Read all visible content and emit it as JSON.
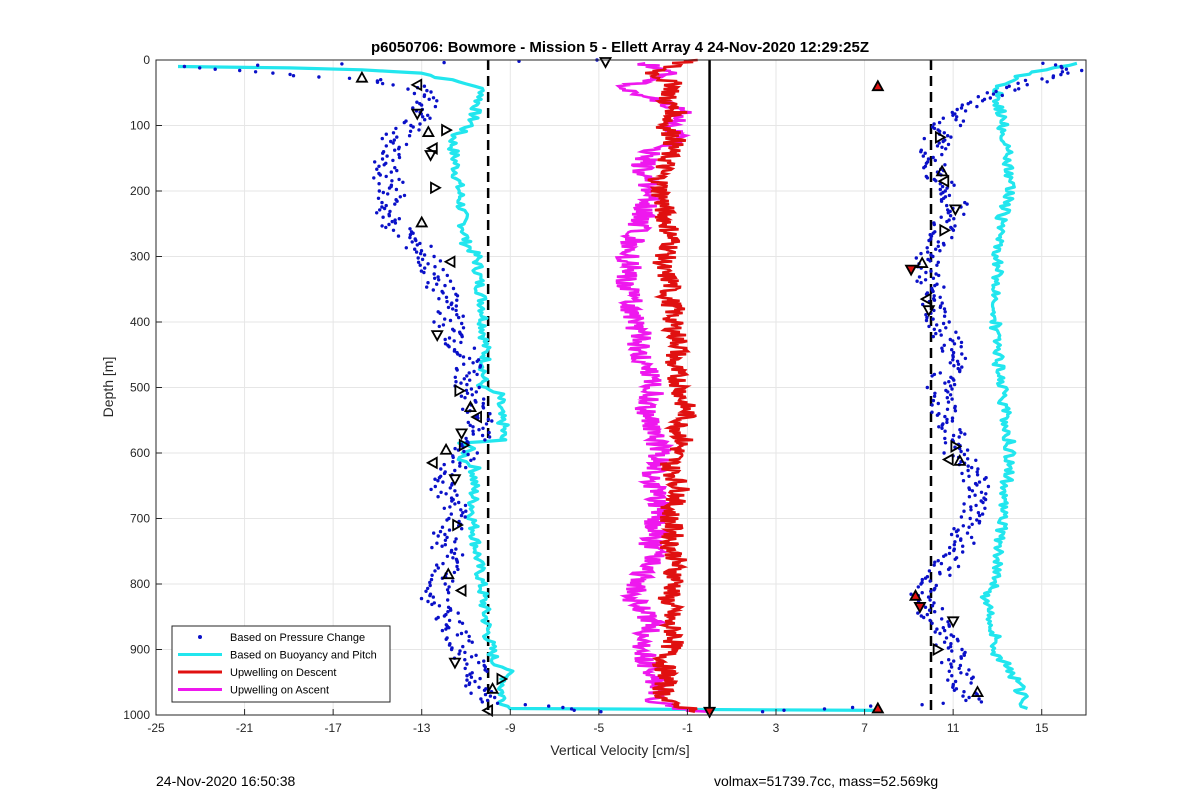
{
  "chart_data": {
    "type": "scatter",
    "title": "p6050706: Bowmore - Mission 5 - Ellett Array 4 24-Nov-2020 12:29:25Z",
    "xlabel": "Vertical Velocity [cm/s]",
    "ylabel": "Depth [m]",
    "xlim": [
      -25,
      17
    ],
    "ylim": [
      0,
      1000
    ],
    "y_reversed": true,
    "xticks": [
      -25,
      -21,
      -17,
      -13,
      -9,
      -5,
      -1,
      3,
      7,
      11,
      15
    ],
    "yticks": [
      0,
      100,
      200,
      300,
      400,
      500,
      600,
      700,
      800,
      900,
      1000
    ],
    "grid": true,
    "legend_position": "bottom-left",
    "reference_lines": [
      {
        "x": -10,
        "style": "dashed",
        "color": "#000000"
      },
      {
        "x": 10,
        "style": "dashed",
        "color": "#000000"
      },
      {
        "x": 0,
        "style": "solid",
        "color": "#000000"
      }
    ],
    "series": [
      {
        "name": "Based on Pressure Change",
        "style": "dots",
        "color": "#0a10c8",
        "descent": {
          "depth": [
            0,
            10,
            20,
            30,
            40,
            60,
            80,
            100,
            120,
            140,
            160,
            180,
            200,
            220,
            240,
            260,
            280,
            300,
            320,
            340,
            360,
            380,
            400,
            420,
            440,
            460,
            480,
            500,
            520,
            540,
            560,
            580,
            600,
            620,
            640,
            660,
            680,
            700,
            720,
            740,
            760,
            780,
            800,
            820,
            840,
            860,
            880,
            900,
            920,
            940,
            960,
            980,
            995
          ],
          "velocity": [
            -5,
            -24,
            -20,
            -15.5,
            -13.2,
            -12.8,
            -13,
            -13.5,
            -14.2,
            -14.5,
            -14.8,
            -14.6,
            -14.3,
            -14.5,
            -14.6,
            -14,
            -13.3,
            -12.8,
            -12.5,
            -12.3,
            -12,
            -11.6,
            -11.8,
            -11.5,
            -11.2,
            -11,
            -10.9,
            -11,
            -10.7,
            -10.5,
            -10.4,
            -10.6,
            -11,
            -11.5,
            -12.3,
            -12,
            -11.5,
            -11.2,
            -11.8,
            -12.1,
            -11.6,
            -11.9,
            -12.2,
            -12.5,
            -12.1,
            -11.6,
            -11.3,
            -11.1,
            -10.8,
            -10.6,
            -10.3,
            -10,
            -5
          ]
        },
        "ascent": {
          "depth": [
            995,
            980,
            960,
            940,
            920,
            900,
            880,
            860,
            840,
            820,
            800,
            780,
            760,
            740,
            720,
            700,
            680,
            660,
            640,
            620,
            600,
            580,
            560,
            540,
            520,
            500,
            480,
            460,
            440,
            420,
            400,
            380,
            360,
            340,
            320,
            300,
            280,
            260,
            240,
            220,
            200,
            180,
            160,
            140,
            120,
            100,
            80,
            60,
            50,
            40,
            20,
            10,
            5
          ],
          "velocity": [
            2,
            12.2,
            11.6,
            11.3,
            11.1,
            11,
            10.6,
            10.3,
            9.9,
            9.6,
            10,
            10.5,
            10.9,
            11.3,
            11.6,
            11.8,
            12,
            12.2,
            12,
            11.6,
            11.2,
            11,
            10.8,
            10.6,
            10.5,
            10.4,
            10.6,
            10.9,
            11.1,
            10.7,
            10.4,
            10.2,
            10.1,
            9.9,
            9.6,
            10,
            10.3,
            10.6,
            10.9,
            11,
            10.6,
            10.4,
            10.2,
            10.1,
            10.3,
            10.7,
            11.4,
            12,
            13,
            14,
            16,
            16.5,
            15.5
          ]
        }
      },
      {
        "name": "Based on Buoyancy and Pitch",
        "style": "line",
        "color": "#22e6ee",
        "descent": {
          "depth": [
            10,
            12,
            15,
            20,
            30,
            40,
            50,
            60,
            80,
            100,
            115,
            130,
            200,
            280,
            300,
            340,
            380,
            400,
            460,
            500,
            510,
            540,
            560,
            580,
            585,
            590,
            600,
            610,
            620,
            700,
            800,
            880,
            920,
            930,
            945,
            960,
            980,
            990,
            993
          ],
          "velocity": [
            -24,
            -19,
            -15.5,
            -13,
            -11.8,
            -10.5,
            -10.2,
            -10.4,
            -10.6,
            -10.8,
            -11.5,
            -11.6,
            -11.3,
            -11,
            -10.5,
            -10.4,
            -10.2,
            -10.2,
            -10.1,
            -10.3,
            -9.5,
            -9.5,
            -9.3,
            -9.4,
            -11.1,
            -10.8,
            -11,
            -11.2,
            -10.6,
            -10.7,
            -10.3,
            -10,
            -9.7,
            -9.1,
            -9.2,
            -9.4,
            -9.3,
            -9,
            8
          ]
        },
        "ascent": {
          "depth": [
            990,
            980,
            960,
            930,
            910,
            880,
            860,
            820,
            800,
            760,
            700,
            650,
            600,
            550,
            500,
            450,
            400,
            350,
            300,
            250,
            200,
            150,
            110,
            90,
            60,
            40,
            25,
            15,
            5
          ],
          "velocity": [
            14.3,
            14.2,
            14,
            13.6,
            13,
            12.9,
            12.8,
            12.4,
            12.9,
            13.1,
            13.2,
            13.4,
            13.6,
            13.4,
            13.2,
            13,
            12.9,
            13,
            13,
            13.1,
            13.6,
            13.5,
            13.3,
            13.2,
            13,
            13,
            14,
            15,
            16.5
          ]
        }
      },
      {
        "name": "Upwelling on Descent",
        "style": "line",
        "color": "#e01010",
        "depth": [
          0,
          20,
          40,
          60,
          80,
          100,
          120,
          140,
          160,
          180,
          200,
          220,
          240,
          260,
          280,
          300,
          320,
          340,
          360,
          380,
          400,
          420,
          440,
          460,
          480,
          500,
          520,
          540,
          560,
          580,
          600,
          620,
          640,
          660,
          680,
          700,
          720,
          740,
          760,
          780,
          800,
          820,
          840,
          860,
          880,
          900,
          920,
          940,
          960,
          980,
          995
        ],
        "velocity": [
          -1,
          -2.5,
          -1.5,
          -2,
          -1.5,
          -2,
          -1.5,
          -1.8,
          -2,
          -2.3,
          -2.2,
          -2.1,
          -2,
          -1.8,
          -1.7,
          -2,
          -2.2,
          -1.7,
          -1.9,
          -1.6,
          -1.7,
          -1.5,
          -1.3,
          -1.7,
          -1.5,
          -1.3,
          -1.2,
          -1.0,
          -1.4,
          -1.2,
          -1.5,
          -1.8,
          -1.5,
          -1.3,
          -1.7,
          -1.8,
          -1.6,
          -1.8,
          -1.5,
          -1.6,
          -1.5,
          -1.9,
          -1.7,
          -1.9,
          -1.5,
          -1.8,
          -2.1,
          -1.9,
          -2.1,
          -2.0,
          -0.3
        ]
      },
      {
        "name": "Upwelling on Ascent",
        "style": "line",
        "color": "#ee18ee",
        "depth": [
          995,
          980,
          960,
          940,
          920,
          900,
          880,
          860,
          840,
          820,
          800,
          780,
          760,
          740,
          720,
          700,
          680,
          660,
          640,
          620,
          600,
          580,
          560,
          540,
          520,
          500,
          480,
          460,
          440,
          420,
          400,
          380,
          360,
          340,
          320,
          300,
          280,
          260,
          240,
          220,
          200,
          180,
          160,
          140,
          120,
          100,
          80,
          60,
          40,
          20,
          5
        ],
        "velocity": [
          -0.5,
          -2.5,
          -2.3,
          -2.6,
          -2.8,
          -3.0,
          -2.9,
          -2.6,
          -3.0,
          -3.5,
          -3.2,
          -3.0,
          -2.4,
          -2.7,
          -2.3,
          -2.5,
          -2.2,
          -2.4,
          -2.7,
          -2.3,
          -2.2,
          -2.4,
          -2.6,
          -2.9,
          -2.7,
          -2.5,
          -2.8,
          -3.0,
          -3.2,
          -3.1,
          -3.4,
          -3.5,
          -3.6,
          -3.8,
          -3.5,
          -3.7,
          -3.5,
          -3.3,
          -3.0,
          -2.8,
          -2.6,
          -2.8,
          -3.0,
          -2.6,
          -1.0,
          -2.0,
          -1.0,
          -2.5,
          -4.0,
          -1.5,
          -3.0
        ]
      }
    ],
    "markers": {
      "descent_triangles": [
        {
          "x": -15.7,
          "depth": 27
        },
        {
          "x": -13.2,
          "depth": 38
        },
        {
          "x": -13.2,
          "depth": 82
        },
        {
          "x": -11.9,
          "depth": 107
        },
        {
          "x": -12.7,
          "depth": 110
        },
        {
          "x": -12.5,
          "depth": 135
        },
        {
          "x": -12.6,
          "depth": 145
        },
        {
          "x": -12.4,
          "depth": 195
        },
        {
          "x": -13,
          "depth": 248
        },
        {
          "x": -11.7,
          "depth": 308
        },
        {
          "x": -12.3,
          "depth": 420
        },
        {
          "x": -11.3,
          "depth": 505
        },
        {
          "x": -10.8,
          "depth": 530
        },
        {
          "x": -10.5,
          "depth": 545
        },
        {
          "x": -11.2,
          "depth": 570
        },
        {
          "x": -11.1,
          "depth": 588
        },
        {
          "x": -11.9,
          "depth": 595
        },
        {
          "x": -12.5,
          "depth": 615
        },
        {
          "x": -11.5,
          "depth": 640
        },
        {
          "x": -11.4,
          "depth": 710
        },
        {
          "x": -11.8,
          "depth": 785
        },
        {
          "x": -11.2,
          "depth": 810
        },
        {
          "x": -11.5,
          "depth": 920
        },
        {
          "x": -9.4,
          "depth": 945
        },
        {
          "x": -9.8,
          "depth": 960
        },
        {
          "x": -10,
          "depth": 993
        },
        {
          "x": -4.7,
          "depth": 3
        }
      ],
      "ascent_triangles": [
        {
          "x": 10.4,
          "depth": 118
        },
        {
          "x": 10.5,
          "depth": 170
        },
        {
          "x": 10.6,
          "depth": 185
        },
        {
          "x": 11.1,
          "depth": 228
        },
        {
          "x": 10.6,
          "depth": 260
        },
        {
          "x": 9.6,
          "depth": 310
        },
        {
          "x": 9.8,
          "depth": 365
        },
        {
          "x": 9.9,
          "depth": 382
        },
        {
          "x": 11.1,
          "depth": 590
        },
        {
          "x": 11.3,
          "depth": 612
        },
        {
          "x": 10.8,
          "depth": 610
        },
        {
          "x": 11,
          "depth": 857
        },
        {
          "x": 10.3,
          "depth": 900
        },
        {
          "x": 12.1,
          "depth": 965
        }
      ],
      "red_triangles": [
        {
          "x": 7.6,
          "depth": 40
        },
        {
          "x": 9.1,
          "depth": 320
        },
        {
          "x": 9.3,
          "depth": 818
        },
        {
          "x": 9.5,
          "depth": 835
        },
        {
          "x": 7.6,
          "depth": 990
        },
        {
          "x": 0,
          "depth": 995
        }
      ]
    },
    "colors": {
      "grid": "#e6e6e6",
      "axis": "#262626",
      "marker_edge": "#000000",
      "marker_fill_red": "#e01010"
    }
  },
  "footer": {
    "timestamp": "24-Nov-2020 16:50:38",
    "info": "volmax=51739.7cc, mass=52.569kg"
  }
}
